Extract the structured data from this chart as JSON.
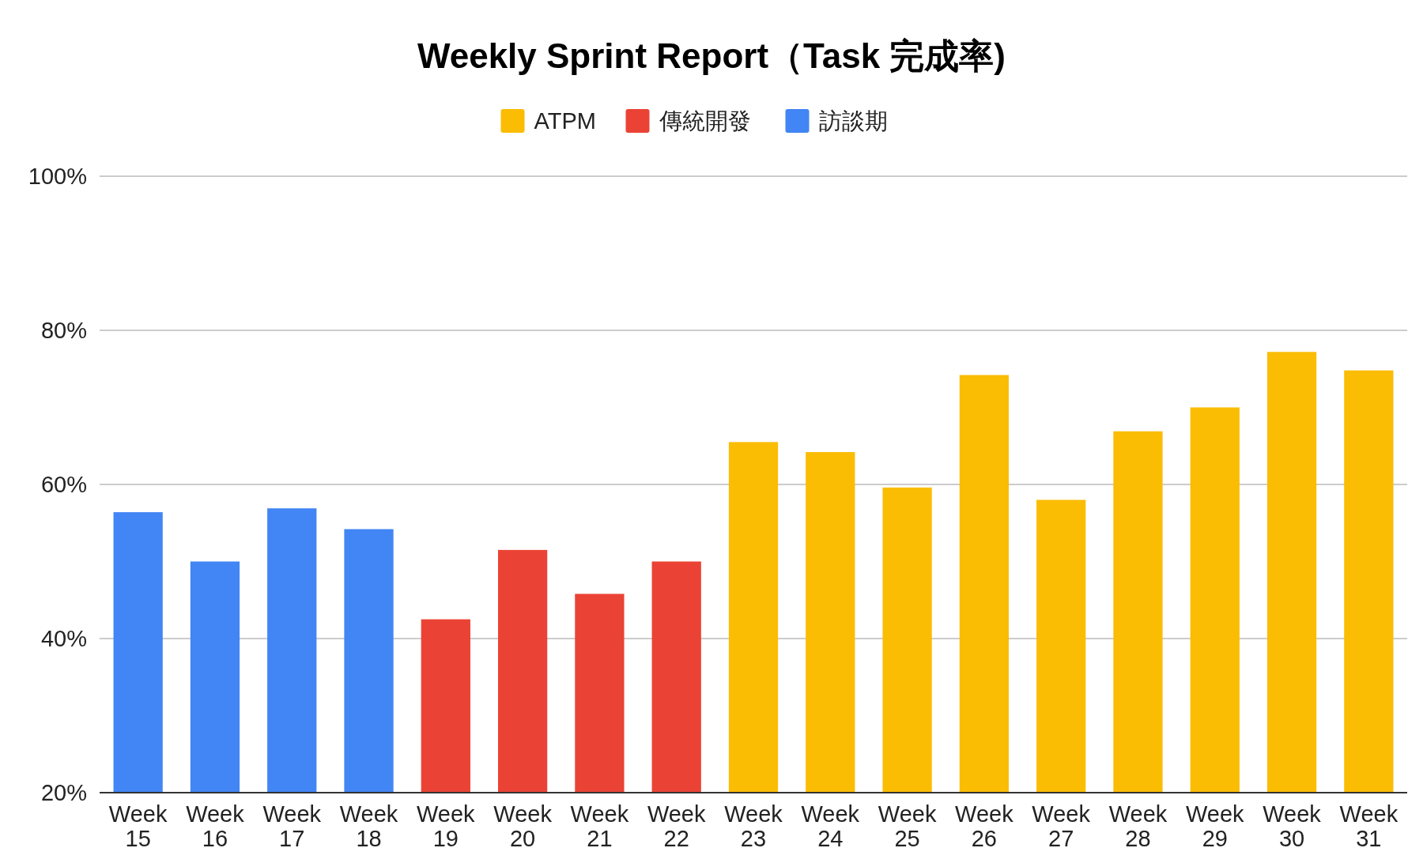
{
  "chart_data": {
    "type": "bar",
    "title": "Weekly Sprint Report（Task 完成率)",
    "categories": [
      "Week 15",
      "Week 16",
      "Week 17",
      "Week 18",
      "Week 19",
      "Week 20",
      "Week 21",
      "Week 22",
      "Week 23",
      "Week 24",
      "Week 25",
      "Week 26",
      "Week 27",
      "Week 28",
      "Week 29",
      "Week 30",
      "Week 31"
    ],
    "series": [
      {
        "name": "ATPM",
        "color": "#fbbc04",
        "values": [
          null,
          null,
          null,
          null,
          null,
          null,
          null,
          null,
          65.5,
          64.2,
          59.6,
          74.2,
          58,
          66.9,
          70,
          77.2,
          74.8
        ]
      },
      {
        "name": "傳統開發",
        "color": "#ea4335",
        "values": [
          null,
          null,
          null,
          null,
          42.5,
          51.5,
          45.8,
          50,
          null,
          null,
          null,
          null,
          null,
          null,
          null,
          null,
          null
        ]
      },
      {
        "name": "訪談期",
        "color": "#4285f4",
        "values": [
          56.4,
          50,
          56.9,
          54.2,
          null,
          null,
          null,
          null,
          null,
          null,
          null,
          null,
          null,
          null,
          null,
          null,
          null
        ]
      }
    ],
    "stacked": true,
    "ylim": [
      20,
      100
    ],
    "yticks": [
      {
        "value": 20,
        "label": "20%"
      },
      {
        "value": 40,
        "label": "40%"
      },
      {
        "value": 60,
        "label": "60%"
      },
      {
        "value": 80,
        "label": "80%"
      },
      {
        "value": 100,
        "label": "100%"
      }
    ],
    "grid": "y",
    "legend": "top"
  }
}
